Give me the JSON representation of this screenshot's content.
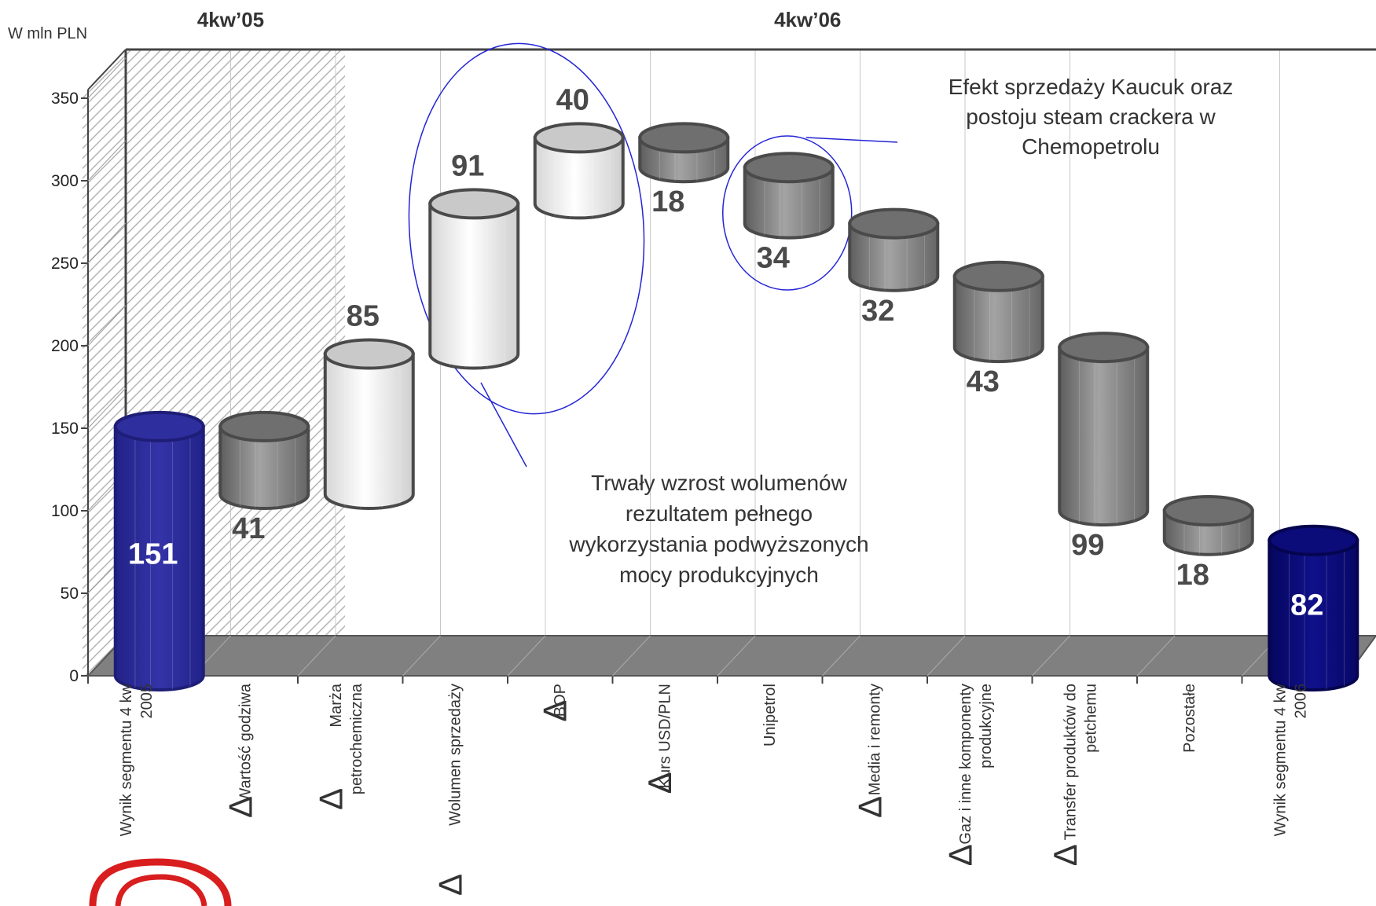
{
  "chart_data": {
    "type": "bar",
    "subtype": "waterfall-3d-cylinder",
    "ylabel": "W mln PLN",
    "ylim": [
      0,
      350
    ],
    "yticks": [
      "0",
      "50",
      "100",
      "150",
      "200",
      "250",
      "300",
      "350"
    ],
    "ytick_values": [
      0,
      50,
      100,
      150,
      200,
      250,
      300,
      350
    ],
    "periods": [
      {
        "label": "4kw’05",
        "from_category": 0,
        "to_category": 1
      },
      {
        "label": "4kw’06",
        "from_category": 2,
        "to_category": 11
      }
    ],
    "categories": [
      {
        "line1": "Wynik segmentu 4 kw",
        "line2": "2005",
        "delta": false
      },
      {
        "line1": "Wartość godziwa",
        "line2": "",
        "delta": true
      },
      {
        "line1": "Marża",
        "line2": "petrochemiczna",
        "delta": true
      },
      {
        "line1": "",
        "line2": "Wolumen sprzedaży",
        "delta": true
      },
      {
        "line1": "BOP",
        "line2": "",
        "delta": true
      },
      {
        "line1": "Kurs USD/PLN",
        "line2": "",
        "delta": true
      },
      {
        "line1": "Unipetrol",
        "line2": "",
        "delta": false
      },
      {
        "line1": "Media i remonty",
        "line2": "",
        "delta": true
      },
      {
        "line1": "Gaz i inne komponenty",
        "line2": "produkcyjne",
        "delta": true
      },
      {
        "line1": "Transfer produktów do",
        "line2": "petchemu",
        "delta": true
      },
      {
        "line1": "Pozostałe",
        "line2": "",
        "delta": false
      },
      {
        "line1": "Wynik segmentu 4 kw",
        "line2": "2006",
        "delta": false
      }
    ],
    "delta_symbol": "Δ",
    "bars": [
      {
        "label": "151",
        "bottom": 0,
        "top": 151,
        "kind": "total",
        "label_pos": "inside"
      },
      {
        "label": "41",
        "bottom": 110,
        "top": 151,
        "kind": "decrease",
        "label_pos": "below"
      },
      {
        "label": "85",
        "bottom": 110,
        "top": 195,
        "kind": "increase",
        "label_pos": "above"
      },
      {
        "label": "91",
        "bottom": 195,
        "top": 286,
        "kind": "increase",
        "label_pos": "above"
      },
      {
        "label": "40",
        "bottom": 286,
        "top": 326,
        "kind": "increase",
        "label_pos": "above"
      },
      {
        "label": "18",
        "bottom": 308,
        "top": 326,
        "kind": "decrease",
        "label_pos": "below"
      },
      {
        "label": "34",
        "bottom": 274,
        "top": 308,
        "kind": "decrease",
        "label_pos": "below"
      },
      {
        "label": "32",
        "bottom": 242,
        "top": 274,
        "kind": "decrease",
        "label_pos": "below"
      },
      {
        "label": "43",
        "bottom": 199,
        "top": 242,
        "kind": "decrease",
        "label_pos": "below"
      },
      {
        "label": "99",
        "bottom": 100,
        "top": 199,
        "kind": "decrease",
        "label_pos": "below"
      },
      {
        "label": "18",
        "bottom": 82,
        "top": 100,
        "kind": "decrease",
        "label_pos": "below"
      },
      {
        "label": "82",
        "bottom": 0,
        "top": 82,
        "kind": "total",
        "label_pos": "inside"
      }
    ],
    "annotations": [
      {
        "lines": [
          "Efekt sprzedaży Kaucuk oraz",
          "postoju steam crackera w",
          "Chemopetrolu"
        ],
        "target_bar": 6
      },
      {
        "lines": [
          "Trwały wzrost wolumenów",
          "rezultatem pełnego",
          "wykorzystania podwyższonych",
          "mocy produkcyjnych"
        ],
        "target_bars": [
          3,
          4
        ]
      }
    ],
    "grid": true,
    "legend": "none",
    "colors": {
      "total_2005": "#2e2e9e",
      "total_2006": "#0b0b7a",
      "increase": "#f2f2f2",
      "decrease": "#7d7d7d",
      "floor": "#808080",
      "annotation_ellipse": "#2424d6",
      "hatch": "#b5b5b5",
      "gridline": "#c8c8c8",
      "logo": "#d81e1e"
    }
  }
}
